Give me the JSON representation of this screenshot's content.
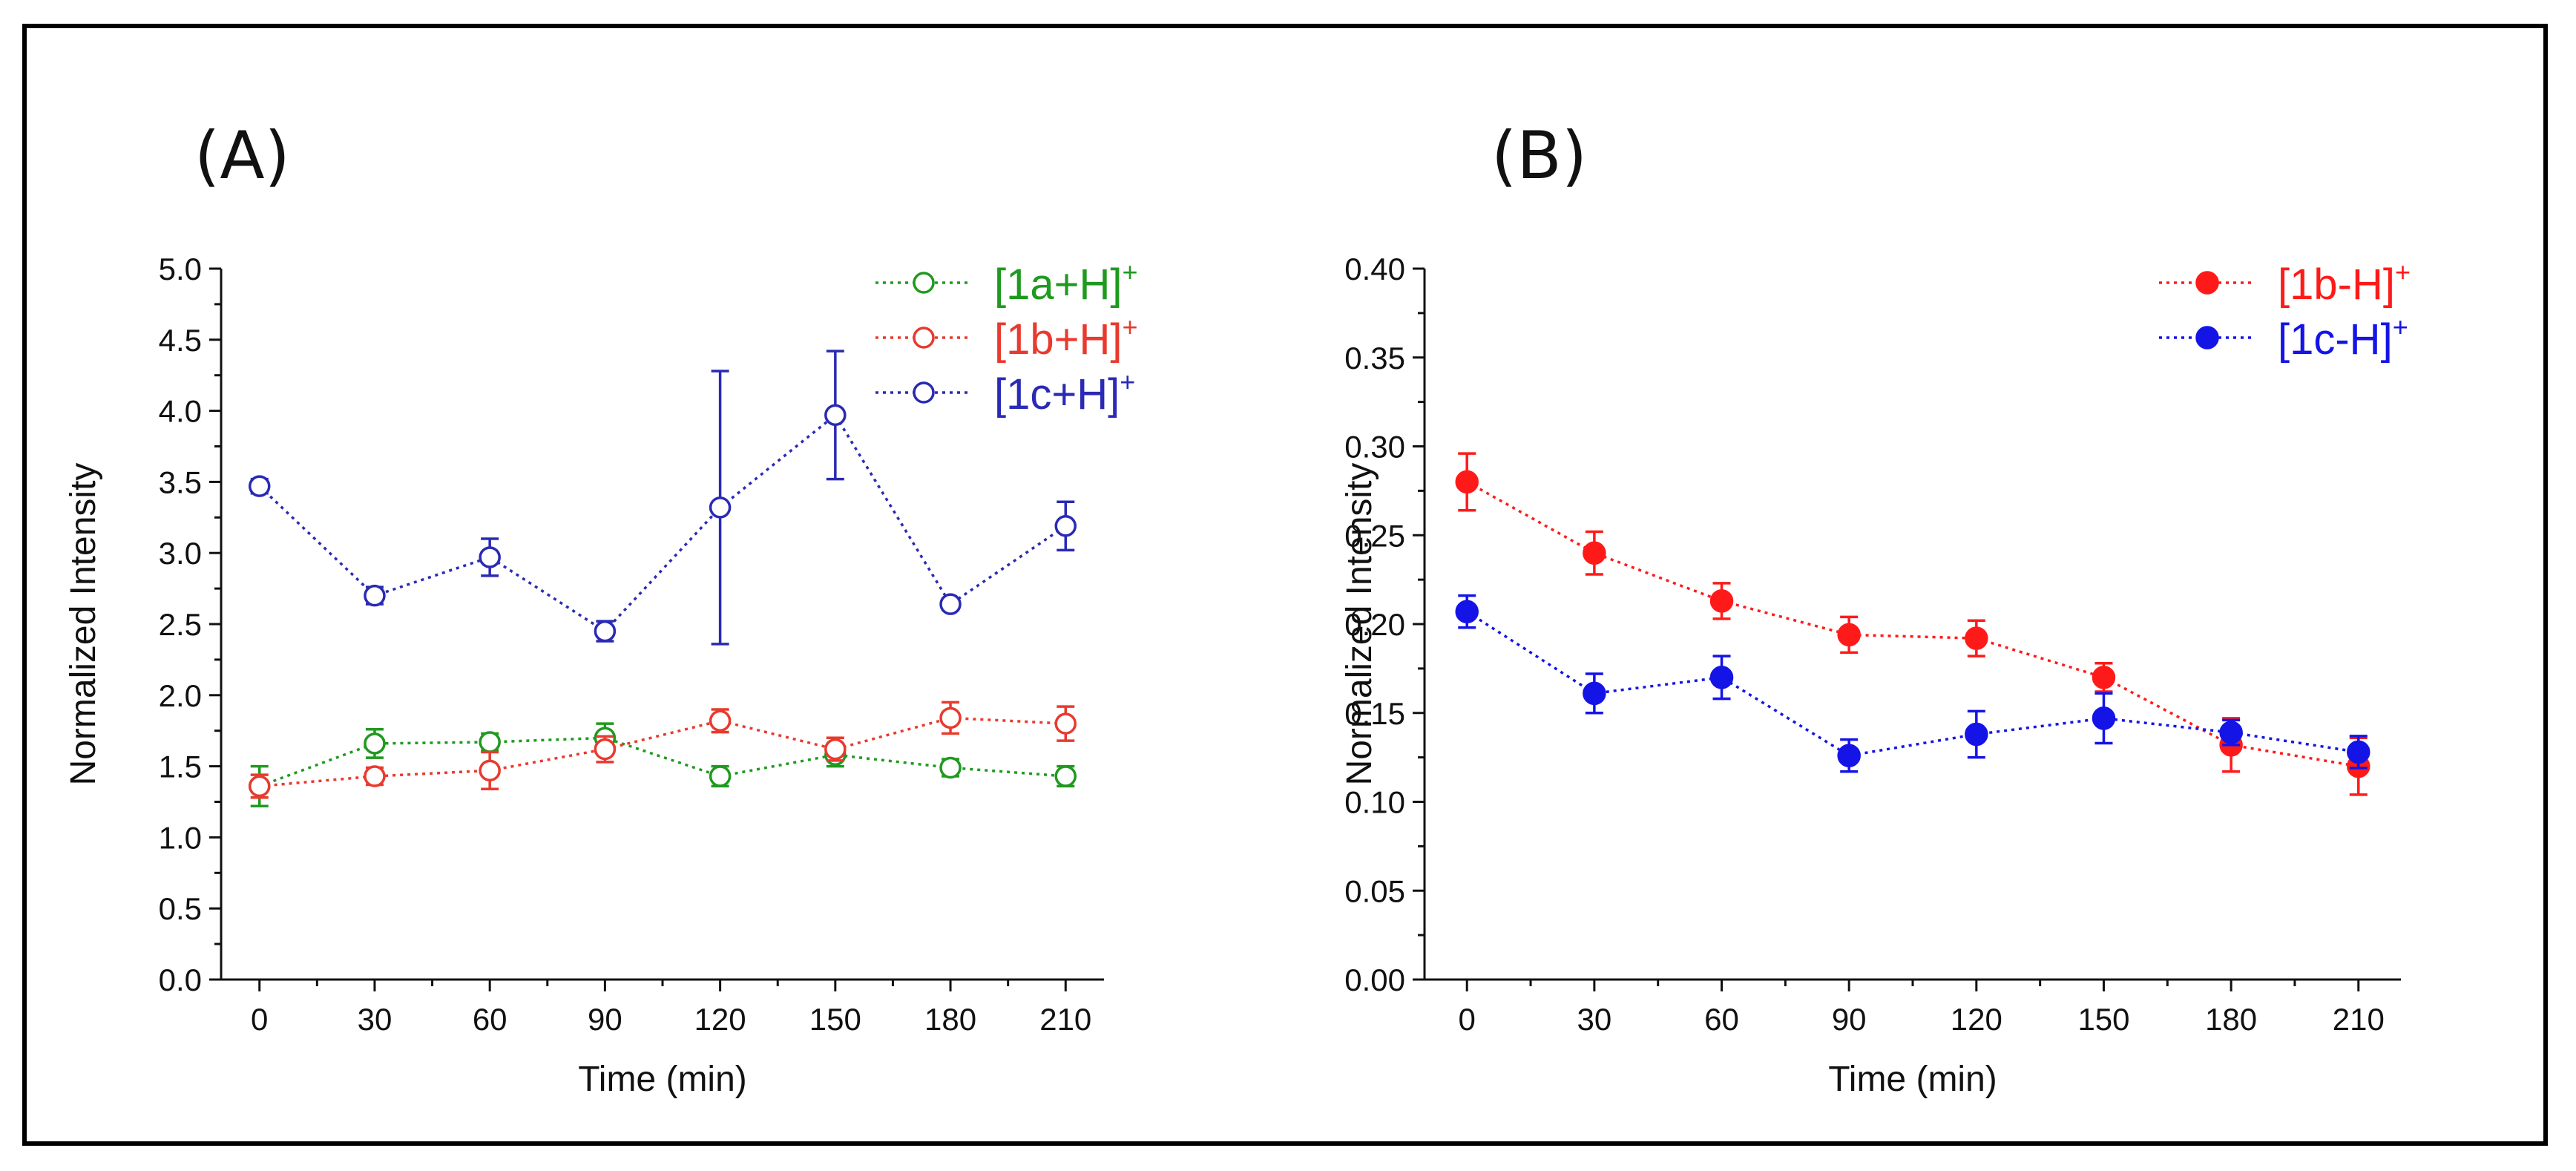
{
  "chart_data": [
    {
      "type": "line",
      "panel_label": "(A)",
      "xlabel": "Time (min)",
      "ylabel": "Normalized Intensity",
      "x": [
        0,
        30,
        60,
        90,
        120,
        150,
        180,
        210
      ],
      "x_ticks": [
        "0",
        "30",
        "60",
        "90",
        "120",
        "150",
        "180",
        "210"
      ],
      "xlim": [
        -10,
        220
      ],
      "ylim": [
        0.0,
        5.0
      ],
      "y_ticks": [
        "0.0",
        "0.5",
        "1.0",
        "1.5",
        "2.0",
        "2.5",
        "3.0",
        "3.5",
        "4.0",
        "4.5",
        "5.0"
      ],
      "marker": "open-circle",
      "line_style": "dotted",
      "error_bars": true,
      "legend_position": "top-right",
      "series": [
        {
          "name": "[1a+H]",
          "sup": "+",
          "color": "#1f9a1f",
          "values": [
            1.36,
            1.66,
            1.67,
            1.7,
            1.43,
            1.58,
            1.49,
            1.43
          ],
          "errors": [
            0.14,
            0.1,
            0.06,
            0.1,
            0.07,
            0.08,
            0.06,
            0.07
          ]
        },
        {
          "name": "[1b+H]",
          "sup": "+",
          "color": "#e83a2e",
          "values": [
            1.36,
            1.43,
            1.47,
            1.62,
            1.82,
            1.62,
            1.84,
            1.8
          ],
          "errors": [
            0.08,
            0.06,
            0.13,
            0.09,
            0.08,
            0.08,
            0.11,
            0.12
          ]
        },
        {
          "name": "[1c+H]",
          "sup": "+",
          "color": "#2a2ab5",
          "values": [
            3.47,
            2.7,
            2.97,
            2.45,
            3.32,
            3.97,
            2.64,
            3.19
          ],
          "errors": [
            0.05,
            0.06,
            0.13,
            0.07,
            0.96,
            0.45,
            0.04,
            0.17
          ]
        }
      ]
    },
    {
      "type": "line",
      "panel_label": "(B)",
      "xlabel": "Time (min)",
      "ylabel": "Normalized Intensity",
      "x": [
        0,
        30,
        60,
        90,
        120,
        150,
        180,
        210
      ],
      "x_ticks": [
        "0",
        "30",
        "60",
        "90",
        "120",
        "150",
        "180",
        "210"
      ],
      "xlim": [
        -10,
        220
      ],
      "ylim": [
        0.0,
        0.4
      ],
      "y_ticks": [
        "0.00",
        "0.05",
        "0.10",
        "0.15",
        "0.20",
        "0.25",
        "0.30",
        "0.35",
        "0.40"
      ],
      "marker": "filled-circle",
      "line_style": "dotted",
      "error_bars": true,
      "legend_position": "top-right",
      "series": [
        {
          "name": "[1b-H]",
          "sup": "+",
          "color": "#ff1a1a",
          "values": [
            0.28,
            0.24,
            0.213,
            0.194,
            0.192,
            0.17,
            0.132,
            0.12
          ],
          "errors": [
            0.016,
            0.012,
            0.01,
            0.01,
            0.01,
            0.008,
            0.015,
            0.016
          ]
        },
        {
          "name": "[1c-H]",
          "sup": "+",
          "color": "#1414e6",
          "values": [
            0.207,
            0.161,
            0.17,
            0.126,
            0.138,
            0.147,
            0.139,
            0.128
          ],
          "errors": [
            0.009,
            0.011,
            0.012,
            0.009,
            0.013,
            0.014,
            0.007,
            0.009
          ]
        }
      ]
    }
  ]
}
